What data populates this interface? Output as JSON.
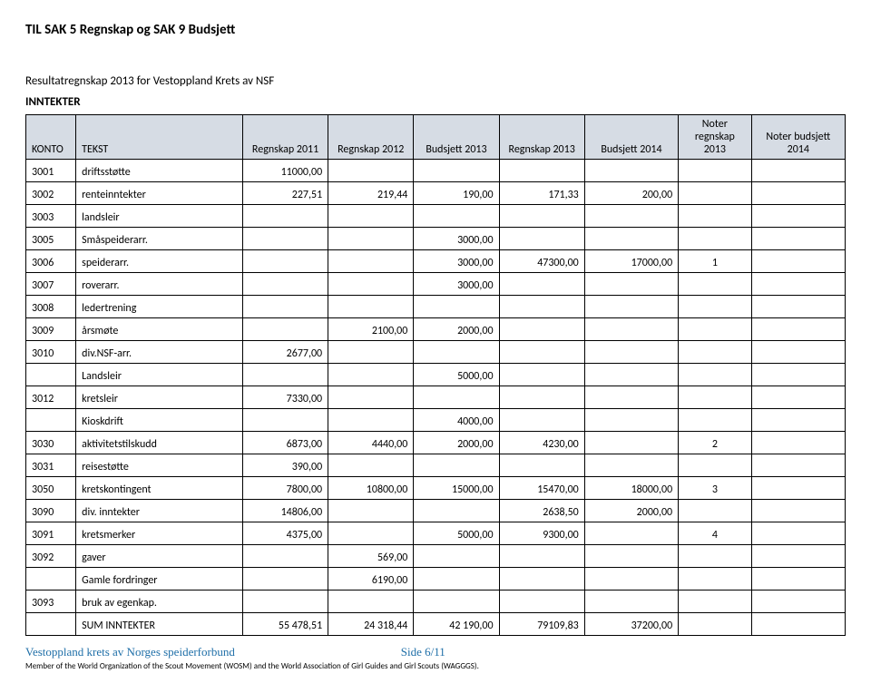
{
  "doc_title": "TIL SAK 5 Regnskap og SAK 9 Budsjett",
  "section_title": "Resultatregnskap 2013 for Vestoppland Krets av NSF",
  "subsection": "INNTEKTER",
  "columns": [
    "KONTO",
    "TEKST",
    "Regnskap 2011",
    "Regnskap 2012",
    "Budsjett 2013",
    "Regnskap 2013",
    "Budsjett 2014",
    "Noter regnskap 2013",
    "Noter budsjett 2014"
  ],
  "col_widths": [
    "48px",
    "160px",
    "82px",
    "82px",
    "82px",
    "82px",
    "90px",
    "70px",
    "90px"
  ],
  "header_bg": "#d6dce4",
  "rows": [
    {
      "konto": "3001",
      "tekst": "driftsstøtte",
      "c": [
        "11000,00",
        "",
        "",
        "",
        "",
        "",
        ""
      ]
    },
    {
      "konto": "3002",
      "tekst": "renteinntekter",
      "c": [
        "227,51",
        "219,44",
        "190,00",
        "171,33",
        "200,00",
        "",
        ""
      ]
    },
    {
      "konto": "3003",
      "tekst": "landsleir",
      "c": [
        "",
        "",
        "",
        "",
        "",
        "",
        ""
      ]
    },
    {
      "konto": "3005",
      "tekst": "Småspeiderarr.",
      "c": [
        "",
        "",
        "3000,00",
        "",
        "",
        "",
        ""
      ]
    },
    {
      "konto": "3006",
      "tekst": "speiderarr.",
      "c": [
        "",
        "",
        "3000,00",
        "47300,00",
        "17000,00",
        "1",
        ""
      ]
    },
    {
      "konto": "3007",
      "tekst": "roverarr.",
      "c": [
        "",
        "",
        "3000,00",
        "",
        "",
        "",
        ""
      ]
    },
    {
      "konto": "3008",
      "tekst": "ledertrening",
      "c": [
        "",
        "",
        "",
        "",
        "",
        "",
        ""
      ]
    },
    {
      "konto": "3009",
      "tekst": "årsmøte",
      "c": [
        "",
        "2100,00",
        "2000,00",
        "",
        "",
        "",
        ""
      ]
    },
    {
      "konto": "3010",
      "tekst": "div.NSF-arr.",
      "c": [
        "2677,00",
        "",
        "",
        "",
        "",
        "",
        ""
      ]
    },
    {
      "konto": "",
      "tekst": "Landsleir",
      "c": [
        "",
        "",
        "5000,00",
        "",
        "",
        "",
        ""
      ]
    },
    {
      "konto": "3012",
      "tekst": "kretsleir",
      "c": [
        "7330,00",
        "",
        "",
        "",
        "",
        "",
        ""
      ]
    },
    {
      "konto": "",
      "tekst": "Kioskdrift",
      "c": [
        "",
        "",
        "4000,00",
        "",
        "",
        "",
        ""
      ]
    },
    {
      "konto": "3030",
      "tekst": "aktivitetstilskudd",
      "c": [
        "6873,00",
        "4440,00",
        "2000,00",
        "4230,00",
        "",
        "2",
        ""
      ]
    },
    {
      "konto": "3031",
      "tekst": "reisestøtte",
      "c": [
        "390,00",
        "",
        "",
        "",
        "",
        "",
        ""
      ]
    },
    {
      "konto": "3050",
      "tekst": "kretskontingent",
      "c": [
        "7800,00",
        "10800,00",
        "15000,00",
        "15470,00",
        "18000,00",
        "3",
        ""
      ]
    },
    {
      "konto": "3090",
      "tekst": "div. inntekter",
      "c": [
        "14806,00",
        "",
        "",
        "2638,50",
        "2000,00",
        "",
        ""
      ]
    },
    {
      "konto": "3091",
      "tekst": "kretsmerker",
      "c": [
        "4375,00",
        "",
        "5000,00",
        "9300,00",
        "",
        "4",
        ""
      ]
    },
    {
      "konto": "3092",
      "tekst": "gaver",
      "c": [
        "",
        "569,00",
        "",
        "",
        "",
        "",
        ""
      ]
    },
    {
      "konto": "",
      "tekst": "Gamle fordringer",
      "c": [
        "",
        "6190,00",
        "",
        "",
        "",
        "",
        ""
      ]
    },
    {
      "konto": "3093",
      "tekst": "bruk av egenkap.",
      "c": [
        "",
        "",
        "",
        "",
        "",
        "",
        ""
      ]
    },
    {
      "konto": "",
      "tekst": "SUM INNTEKTER",
      "c": [
        "55 478,51",
        "24 318,44",
        "42 190,00",
        "79109,83",
        "37200,00",
        "",
        ""
      ]
    }
  ],
  "footer_org": "Vestoppland krets av Norges speiderforbund",
  "footer_page": "Side 6/11",
  "footer_small": "Member of the World Organization of the Scout Movement (WOSM) and the World Association of Girl Guides and Girl Scouts (WAGGGS)."
}
